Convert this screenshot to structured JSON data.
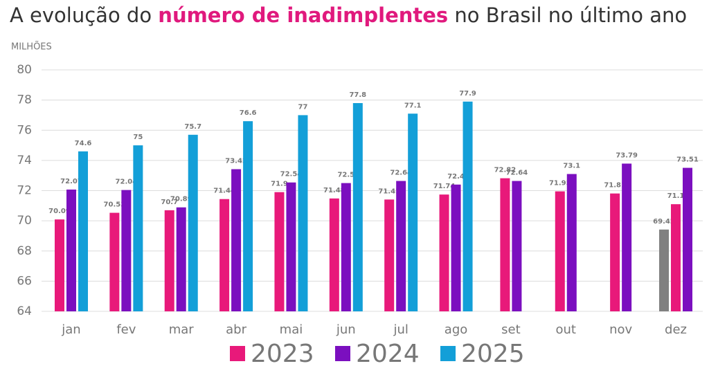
{
  "chart_data": {
    "type": "bar",
    "title_parts": [
      "A evolução do ",
      "número de inadimplentes",
      " no Brasil no último ano"
    ],
    "title_colors": [
      "#333333",
      "#e0197d",
      "#333333"
    ],
    "y_axis_label": "MILHÕES",
    "categories": [
      "jan",
      "fev",
      "mar",
      "abr",
      "mai",
      "jun",
      "jul",
      "ago",
      "set",
      "out",
      "nov",
      "dez"
    ],
    "series": [
      {
        "color": "#808080",
        "values": [
          null,
          null,
          null,
          null,
          null,
          null,
          null,
          null,
          null,
          null,
          null,
          69.42
        ]
      },
      {
        "name": "2023",
        "color": "#e8197a",
        "values": [
          70.09,
          70.53,
          70.7,
          71.44,
          71.9,
          71.48,
          71.41,
          71.74,
          72.82,
          71.95,
          71.81,
          71.1
        ]
      },
      {
        "name": "2024",
        "color": "#7b0fbf",
        "values": [
          72.07,
          72.04,
          70.89,
          73.42,
          72.54,
          72.5,
          72.64,
          72.4,
          72.64,
          73.1,
          73.79,
          73.51
        ]
      },
      {
        "name": "2025",
        "color": "#139fd8",
        "values": [
          74.6,
          75,
          75.7,
          76.6,
          77,
          77.8,
          77.1,
          77.9,
          null,
          null,
          null,
          null
        ]
      }
    ],
    "ylim": [
      64,
      80
    ],
    "yticks": [
      64,
      66,
      68,
      70,
      72,
      74,
      76,
      78,
      80
    ],
    "grid": true
  }
}
